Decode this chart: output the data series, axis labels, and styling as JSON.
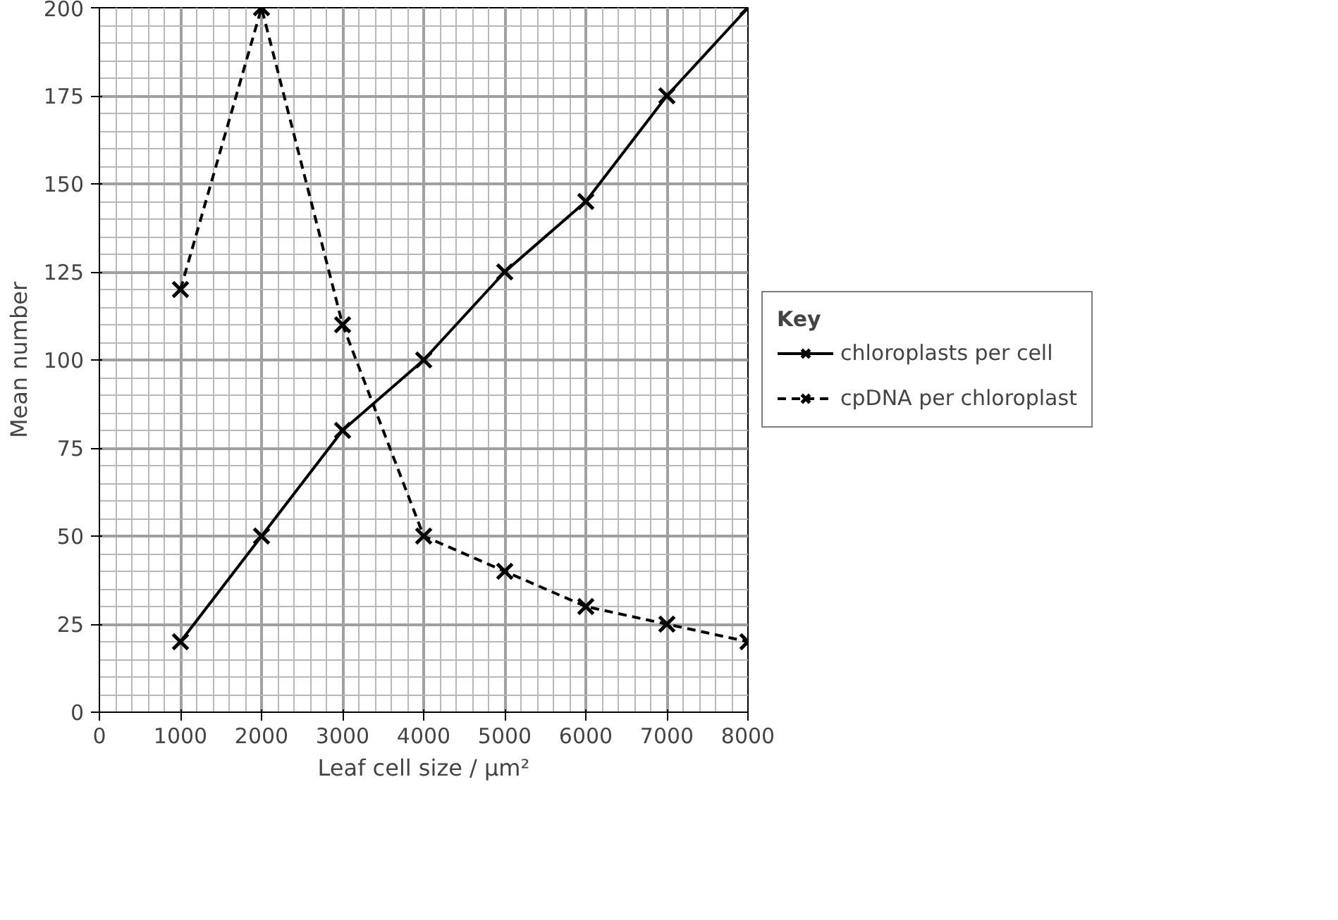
{
  "chart_data": {
    "type": "line",
    "xlabel": "Leaf cell size / μm²",
    "ylabel": "Mean number",
    "legend_title": "Key",
    "x": [
      1000,
      2000,
      3000,
      4000,
      5000,
      6000,
      7000,
      8000
    ],
    "series": [
      {
        "name": "chloroplasts per cell",
        "color": "#000000",
        "line_style": "solid",
        "values": [
          20,
          50,
          80,
          100,
          125,
          145,
          175,
          200
        ]
      },
      {
        "name": "cpDNA per chloroplast",
        "color": "#000000",
        "line_style": "dashed",
        "values": [
          120,
          200,
          110,
          50,
          40,
          30,
          25,
          20
        ]
      }
    ],
    "xlim": [
      0,
      8000
    ],
    "ylim": [
      0,
      200
    ],
    "xticks": [
      0,
      1000,
      2000,
      3000,
      4000,
      5000,
      6000,
      7000,
      8000
    ],
    "yticks": [
      0,
      25,
      50,
      75,
      100,
      125,
      150,
      175,
      200
    ],
    "grid": true,
    "legend": "right",
    "marker": "cross"
  }
}
